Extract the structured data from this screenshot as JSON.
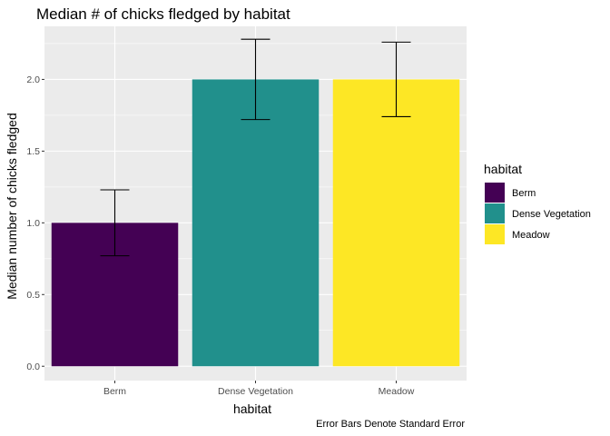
{
  "chart_data": {
    "type": "bar",
    "title": "Median # of chicks fledged by habitat",
    "xlabel": "habitat",
    "ylabel": "Median number of chicks fledged",
    "categories": [
      "Berm",
      "Dense Vegetation",
      "Meadow"
    ],
    "values": [
      1.0,
      2.0,
      2.0
    ],
    "error_low": [
      0.77,
      1.72,
      1.74
    ],
    "error_high": [
      1.23,
      2.28,
      2.26
    ],
    "colors": [
      "#440154",
      "#21908C",
      "#FDE725"
    ],
    "ylim": [
      -0.1,
      2.37
    ],
    "y_ticks": [
      "0.0",
      "0.5",
      "1.0",
      "1.5",
      "2.0"
    ],
    "grid": true,
    "legend": {
      "title": "habitat",
      "position": "right",
      "entries": [
        "Berm",
        "Dense Vegetation",
        "Meadow"
      ]
    },
    "caption": "Error Bars Denote Standard Error",
    "panel_background": "#EBEBEB",
    "grid_color": "#FFFFFF"
  }
}
